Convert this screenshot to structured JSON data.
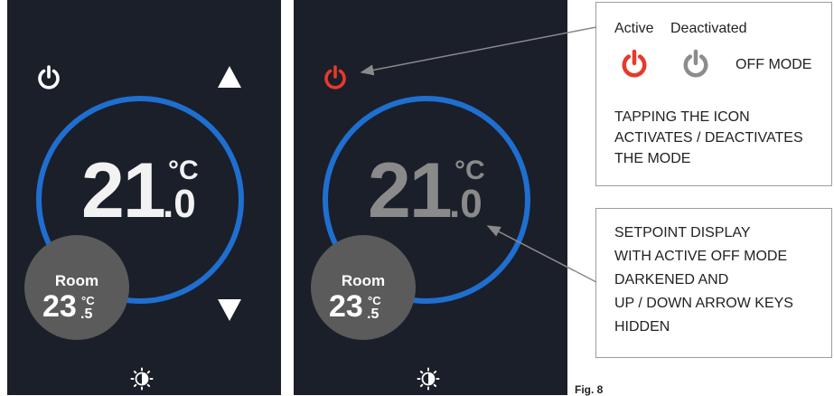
{
  "panels": {
    "left": {
      "setpoint": {
        "integer": "21",
        "unit": "°C",
        "decimal": ".0"
      },
      "room": {
        "label": "Room",
        "integer": "23",
        "unit": "°C",
        "decimal": ".5"
      }
    },
    "right": {
      "setpoint": {
        "integer": "21",
        "unit": "°C",
        "decimal": ".0"
      },
      "room": {
        "label": "Room",
        "integer": "23",
        "unit": "°C",
        "decimal": ".5"
      }
    }
  },
  "callout_off": {
    "legend_active": "Active",
    "legend_deactivated": "Deactivated",
    "mode_label": "OFF MODE",
    "lines": [
      "TAPPING THE ICON",
      "ACTIVATES / DEACTIVATES",
      "THE MODE"
    ]
  },
  "callout_setpoint": {
    "lines": [
      "SETPOINT DISPLAY",
      "WITH ACTIVE OFF MODE",
      "DARKENED AND",
      "UP / DOWN ARROW KEYS",
      "HIDDEN"
    ]
  },
  "figure_caption": "Fig. 8",
  "colors": {
    "panel_bg": "#1b1f2a",
    "ring": "#1f6fd1",
    "power_active": "#e8392a",
    "power_deactivated": "#8c8c8c",
    "power_default": "#ffffff"
  },
  "icons": [
    "power-icon",
    "up-arrow-icon",
    "down-arrow-icon",
    "brightness-icon"
  ]
}
